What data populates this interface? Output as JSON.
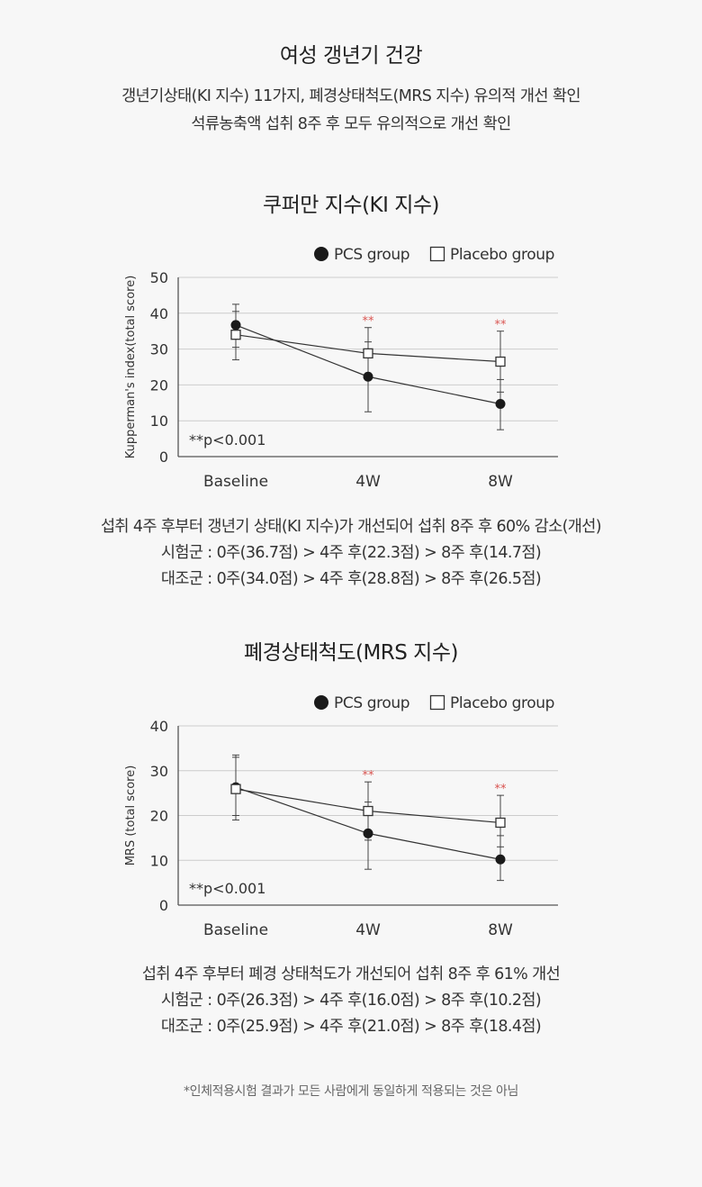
{
  "header": {
    "title": "여성 갱년기 건강",
    "line1": "갱년기상태(KI 지수) 11가지, 폐경상태척도(MRS 지수) 유의적 개선 확인",
    "line2": "석류농축액 섭취 8주 후 모두 유의적으로 개선 확인"
  },
  "legend": {
    "pcs": "PCS group",
    "placebo": "Placebo group"
  },
  "colors": {
    "pcs": "#1a1a1a",
    "placebo": "#ffffff",
    "star": "#d9534f",
    "grid": "#cccccc"
  },
  "chart_data": [
    {
      "type": "line",
      "title": "쿠퍼만 지수(KI 지수)",
      "ylabel": "Kupperman's index(total score)",
      "xlabel": "",
      "categories": [
        "Baseline",
        "4W",
        "8W"
      ],
      "ylim": [
        0,
        50
      ],
      "yticks": [
        0,
        10,
        20,
        30,
        40,
        50
      ],
      "grid": true,
      "legend": "top-right",
      "annotation": "**p<0.001",
      "significance": [
        "",
        "**",
        "**"
      ],
      "series": [
        {
          "name": "PCS group",
          "values": [
            36.7,
            22.3,
            14.7
          ],
          "err_low": [
            30.5,
            12.5,
            7.5
          ],
          "err_high": [
            42.5,
            32.0,
            21.5
          ]
        },
        {
          "name": "Placebo group",
          "values": [
            34.0,
            28.8,
            26.5
          ],
          "err_low": [
            27.0,
            21.5,
            18.0
          ],
          "err_high": [
            40.5,
            36.0,
            35.0
          ]
        }
      ]
    },
    {
      "type": "line",
      "title": "폐경상태척도(MRS 지수)",
      "ylabel": "MRS (total score)",
      "xlabel": "",
      "categories": [
        "Baseline",
        "4W",
        "8W"
      ],
      "ylim": [
        0,
        40
      ],
      "yticks": [
        0,
        10,
        20,
        30,
        40
      ],
      "grid": true,
      "legend": "top-right",
      "annotation": "**p<0.001",
      "significance": [
        "",
        "**",
        "**"
      ],
      "series": [
        {
          "name": "PCS group",
          "values": [
            26.3,
            16.0,
            10.2
          ],
          "err_low": [
            19.0,
            8.0,
            5.5
          ],
          "err_high": [
            33.5,
            23.0,
            15.5
          ]
        },
        {
          "name": "Placebo group",
          "values": [
            25.9,
            21.0,
            18.4
          ],
          "err_low": [
            20.0,
            14.5,
            13.0
          ],
          "err_high": [
            33.0,
            27.5,
            24.5
          ]
        }
      ]
    }
  ],
  "chart1_desc": {
    "line1": "섭취 4주 후부터 갱년기 상태(KI 지수)가 개선되어 섭취 8주 후 60% 감소(개선)",
    "line2": "시험군 : 0주(36.7점) > 4주 후(22.3점) > 8주 후(14.7점)",
    "line3": "대조군 : 0주(34.0점) > 4주 후(28.8점) > 8주 후(26.5점)"
  },
  "chart2_desc": {
    "line1": "섭취 4주 후부터 폐경 상태척도가 개선되어 섭취 8주 후 61% 개선",
    "line2": "시험군 : 0주(26.3점) > 4주 후(16.0점) > 8주 후(10.2점)",
    "line3": "대조군 : 0주(25.9점) > 4주 후(21.0점) > 8주 후(18.4점)"
  },
  "footer": {
    "note": "*인체적용시험 결과가 모든 사람에게 동일하게 적용되는 것은 아님"
  }
}
